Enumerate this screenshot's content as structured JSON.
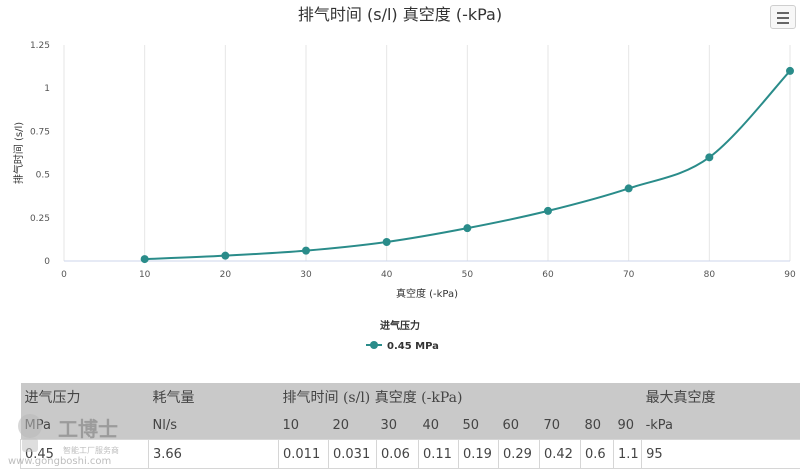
{
  "chart_data": {
    "type": "line",
    "title": "排气时间 (s/l) 真空度 (-kPa)",
    "xlabel": "真空度 (-kPa)",
    "ylabel": "排气时间 (s/l)",
    "xlim": [
      0,
      90
    ],
    "ylim": [
      0,
      1.25
    ],
    "x_ticks": [
      0,
      10,
      20,
      30,
      40,
      50,
      60,
      70,
      80,
      90
    ],
    "y_ticks": [
      0,
      0.25,
      0.5,
      0.75,
      1,
      1.25
    ],
    "grid": "vertical",
    "legend_title": "进气压力",
    "legend_position": "bottom-center",
    "series": [
      {
        "name": "0.45 MPa",
        "color": "#2a8c8a",
        "x": [
          10,
          20,
          30,
          40,
          50,
          60,
          70,
          80,
          90
        ],
        "y": [
          0.011,
          0.031,
          0.06,
          0.11,
          0.19,
          0.29,
          0.42,
          0.6,
          1.1
        ]
      }
    ]
  },
  "menu_icon": "hamburger-menu-icon",
  "table": {
    "headers": {
      "intake_pressure": "进气压力",
      "consumption": "耗气量",
      "exhaust_time": "排气时间 (s/l) 真空度 (-kPa)",
      "max_vacuum": "最大真空度"
    },
    "subheaders": {
      "intake_unit": "MPa",
      "consumption_unit": "Nl/s",
      "vacuum_levels": [
        "10",
        "20",
        "30",
        "40",
        "50",
        "60",
        "70",
        "80",
        "90"
      ],
      "max_vacuum_unit": "-kPa"
    },
    "rows": [
      {
        "intake": "0.45",
        "consumption": "3.66",
        "times": [
          "0.011",
          "0.031",
          "0.06",
          "0.11",
          "0.19",
          "0.29",
          "0.42",
          "0.6",
          "1.1"
        ],
        "max_vacuum": "95"
      }
    ]
  },
  "watermark": {
    "brand": "工博士",
    "tagline": "智能工厂服务商",
    "url": "www.gongboshi.com"
  }
}
